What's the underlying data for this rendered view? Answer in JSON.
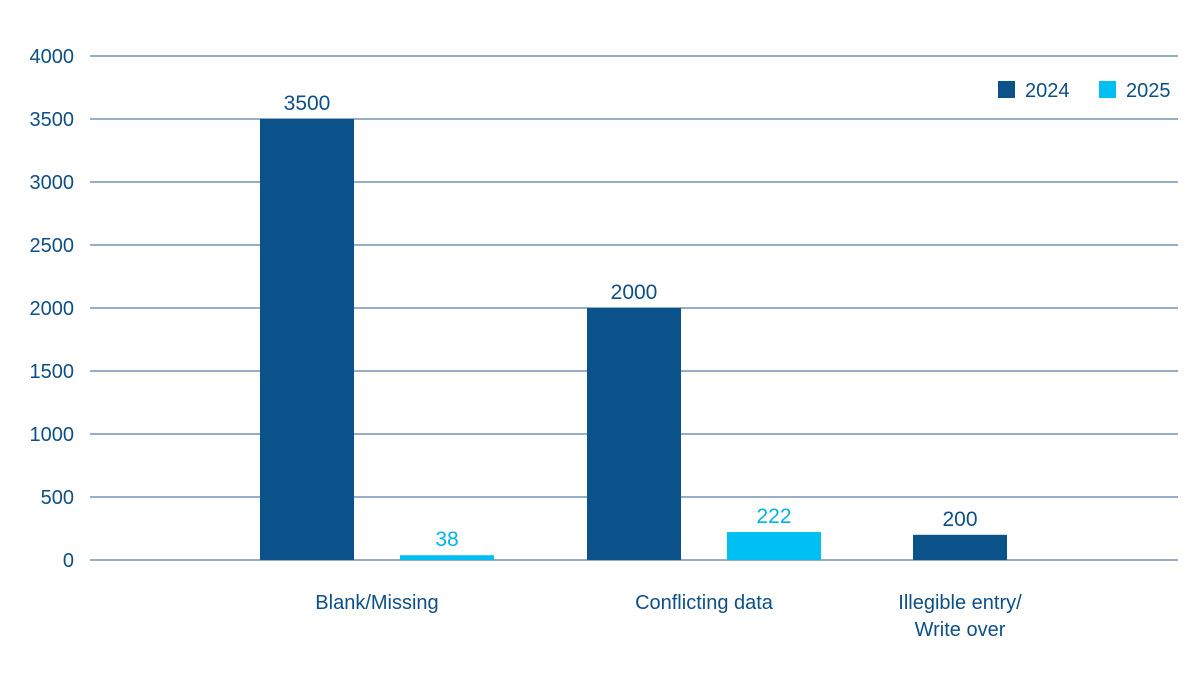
{
  "chart_data": {
    "type": "bar",
    "categories": [
      "Blank/Missing",
      "Conflicting data",
      "Illegible entry/\nWrite over"
    ],
    "series": [
      {
        "name": "2024",
        "values": [
          3500,
          2000,
          200
        ],
        "color": "#0c528a"
      },
      {
        "name": "2025",
        "values": [
          38,
          222,
          null
        ],
        "color": "#00c0f3"
      }
    ],
    "yticks": [
      0,
      500,
      1000,
      1500,
      2000,
      2500,
      3000,
      3500,
      4000
    ],
    "ylim": [
      0,
      4000
    ],
    "grid": true,
    "legend_position": "top-right",
    "title": "",
    "xlabel": "",
    "ylabel": ""
  }
}
